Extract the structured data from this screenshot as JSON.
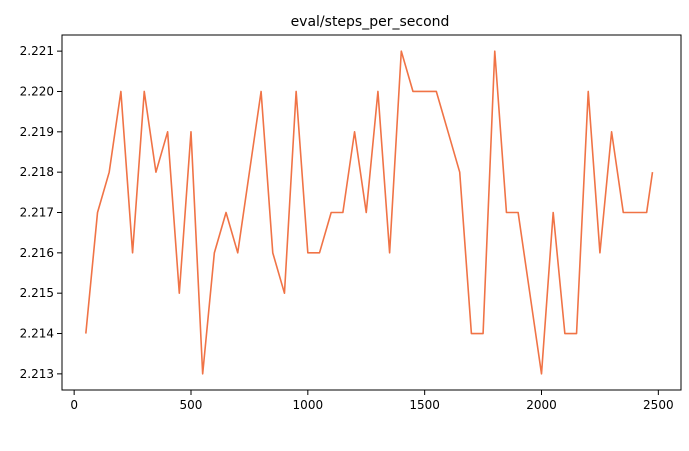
{
  "chart_data": {
    "type": "line",
    "title": "eval/steps_per_second",
    "xlabel": "",
    "ylabel": "",
    "xlim": [
      -52,
      2597
    ],
    "ylim": [
      2.2126,
      2.2214
    ],
    "x_ticks": [
      0,
      500,
      1000,
      1500,
      2000,
      2500
    ],
    "y_ticks": [
      2.213,
      2.214,
      2.215,
      2.216,
      2.217,
      2.218,
      2.219,
      2.22,
      2.221
    ],
    "y_tick_labels": [
      "2.213",
      "2.214",
      "2.215",
      "2.216",
      "2.217",
      "2.218",
      "2.219",
      "2.220",
      "2.221"
    ],
    "grid": false,
    "legend": "none",
    "series": [
      {
        "color": "#f07346",
        "x": [
          50,
          100,
          150,
          200,
          250,
          300,
          350,
          400,
          450,
          500,
          550,
          600,
          650,
          700,
          750,
          800,
          850,
          900,
          950,
          1000,
          1050,
          1100,
          1150,
          1200,
          1250,
          1300,
          1350,
          1400,
          1450,
          1500,
          1550,
          1600,
          1650,
          1700,
          1750,
          1800,
          1850,
          1900,
          1950,
          2000,
          2050,
          2100,
          2150,
          2200,
          2250,
          2300,
          2350,
          2400,
          2450,
          2475
        ],
        "values": [
          2.214,
          2.217,
          2.218,
          2.22,
          2.216,
          2.22,
          2.218,
          2.219,
          2.215,
          2.219,
          2.213,
          2.216,
          2.217,
          2.216,
          2.218,
          2.22,
          2.216,
          2.215,
          2.22,
          2.216,
          2.216,
          2.217,
          2.217,
          2.219,
          2.217,
          2.22,
          2.216,
          2.221,
          2.22,
          2.22,
          2.22,
          2.219,
          2.218,
          2.214,
          2.214,
          2.221,
          2.217,
          2.217,
          2.215,
          2.213,
          2.217,
          2.214,
          2.214,
          2.22,
          2.216,
          2.219,
          2.217,
          2.217,
          2.217,
          2.218
        ]
      }
    ]
  }
}
